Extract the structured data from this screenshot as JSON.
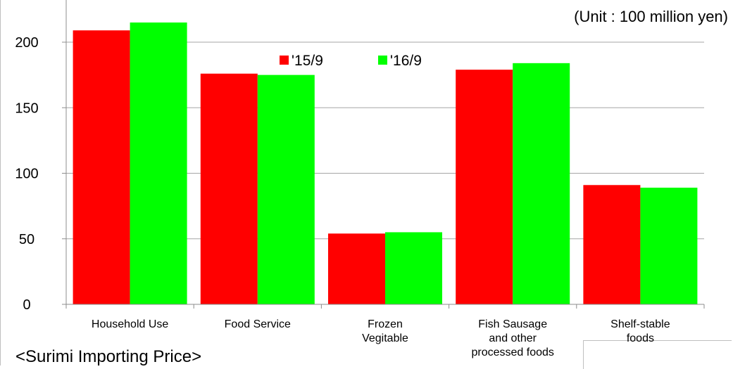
{
  "chart_data": {
    "type": "bar",
    "unit_note": "(Unit : 100 million yen)",
    "categories": [
      [
        "Household Use"
      ],
      [
        "Food Service"
      ],
      [
        "Frozen",
        "Vegitable"
      ],
      [
        "Fish Sausage",
        "and other",
        "processed foods"
      ],
      [
        "Shelf-stable",
        "foods"
      ]
    ],
    "series": [
      {
        "name": "'15/9",
        "color": "#ff0000",
        "values": [
          209,
          176,
          54,
          179,
          91
        ]
      },
      {
        "name": "'16/9",
        "color": "#00ff00",
        "values": [
          215,
          175,
          55,
          184,
          89
        ]
      }
    ],
    "ylim": [
      0,
      200
    ],
    "yticks": [
      0,
      50,
      100,
      150,
      200
    ],
    "grid": true,
    "legend_position": "top-center"
  },
  "caption": "<Surimi Importing Price>"
}
